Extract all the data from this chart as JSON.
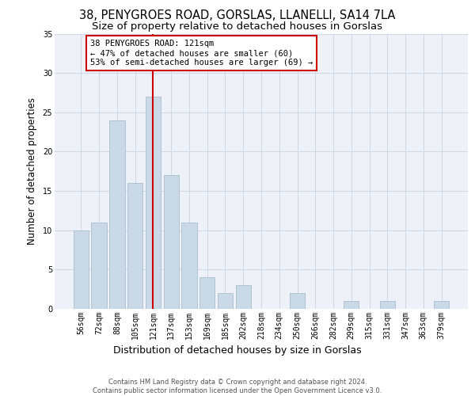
{
  "title1": "38, PENYGROES ROAD, GORSLAS, LLANELLI, SA14 7LA",
  "title2": "Size of property relative to detached houses in Gorslas",
  "xlabel": "Distribution of detached houses by size in Gorslas",
  "ylabel": "Number of detached properties",
  "categories": [
    "56sqm",
    "72sqm",
    "88sqm",
    "105sqm",
    "121sqm",
    "137sqm",
    "153sqm",
    "169sqm",
    "185sqm",
    "202sqm",
    "218sqm",
    "234sqm",
    "250sqm",
    "266sqm",
    "282sqm",
    "299sqm",
    "315sqm",
    "331sqm",
    "347sqm",
    "363sqm",
    "379sqm"
  ],
  "values": [
    10,
    11,
    24,
    16,
    27,
    17,
    11,
    4,
    2,
    3,
    0,
    0,
    2,
    0,
    0,
    1,
    0,
    1,
    0,
    0,
    1
  ],
  "bar_color": "#c9d9e8",
  "bar_edgecolor": "#a8bece",
  "vline_index": 4,
  "vline_color": "#cc0000",
  "annotation_line1": "38 PENYGROES ROAD: 121sqm",
  "annotation_line2": "← 47% of detached houses are smaller (60)",
  "annotation_line3": "53% of semi-detached houses are larger (69) →",
  "annotation_box_facecolor": "#ffffff",
  "annotation_box_edgecolor": "#cc0000",
  "ylim": [
    0,
    35
  ],
  "yticks": [
    0,
    5,
    10,
    15,
    20,
    25,
    30,
    35
  ],
  "grid_color": "#d0d8e8",
  "background_color": "#eef2f8",
  "footer_text": "Contains HM Land Registry data © Crown copyright and database right 2024.\nContains public sector information licensed under the Open Government Licence v3.0.",
  "title1_fontsize": 10.5,
  "title2_fontsize": 9.5,
  "xlabel_fontsize": 9,
  "ylabel_fontsize": 8.5,
  "tick_fontsize": 7,
  "annotation_fontsize": 7.5,
  "footer_fontsize": 6
}
